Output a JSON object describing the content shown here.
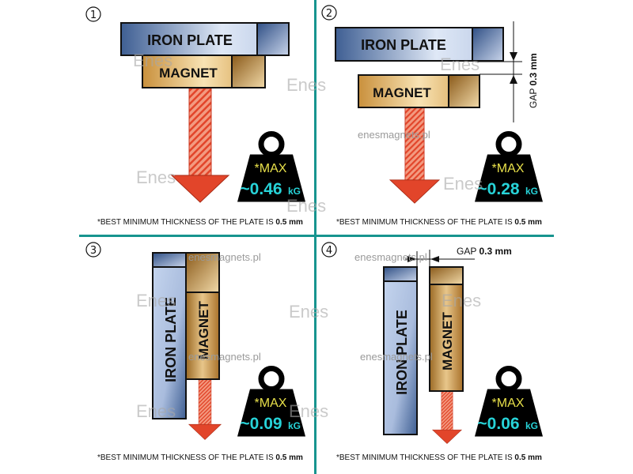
{
  "colors": {
    "divider": "#17948f",
    "iron": "#4a6a9e",
    "magnet": "#d9a24a",
    "arrow": "#e2452a",
    "weight": "#000000",
    "max_text": "#e8e04a",
    "value_text": "#27d3d8"
  },
  "panels": [
    {
      "number": "1",
      "iron_label": "IRON PLATE",
      "magnet_label": "MAGNET",
      "max_label": "*MAX",
      "value": "~0.46",
      "unit": "kG",
      "note": "*BEST MINIMUM THICKNESS OF THE PLATE IS ",
      "note_bold": "0.5 mm"
    },
    {
      "number": "2",
      "iron_label": "IRON PLATE",
      "magnet_label": "MAGNET",
      "max_label": "*MAX",
      "value": "~0.28",
      "unit": "kG",
      "gap_label": "GAP",
      "gap_value": "0.3 mm",
      "note": "*BEST MINIMUM THICKNESS OF THE PLATE IS ",
      "note_bold": "0.5 mm"
    },
    {
      "number": "3",
      "iron_label": "IRON  PLATE",
      "magnet_label": "MAGNET",
      "max_label": "*MAX",
      "value": "~0.09",
      "unit": "kG",
      "note": "*BEST MINIMUM THICKNESS OF THE PLATE IS ",
      "note_bold": "0.5 mm"
    },
    {
      "number": "4",
      "iron_label": "IRON PLATE",
      "magnet_label": "MAGNET",
      "max_label": "*MAX",
      "value": "~0.06",
      "unit": "kG",
      "gap_label": "GAP",
      "gap_value": "0.3 mm",
      "note": "*BEST MINIMUM THICKNESS OF THE PLATE IS ",
      "note_bold": "0.5 mm"
    }
  ],
  "watermark": {
    "url": "enesmagnets.pl",
    "logo": "Enes"
  }
}
